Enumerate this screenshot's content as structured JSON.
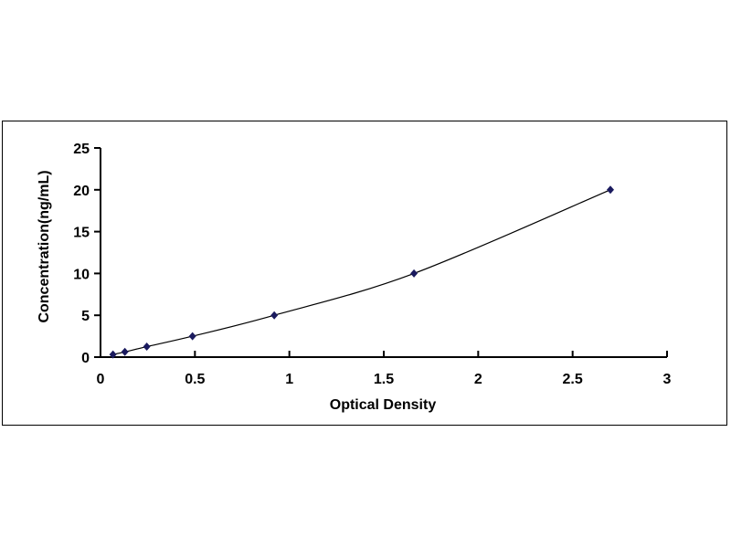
{
  "chart_data": {
    "type": "scatter",
    "title": "",
    "xlabel": "Optical Density",
    "ylabel": "Concentration(ng/mL)",
    "xlim": [
      0,
      3
    ],
    "ylim": [
      0,
      25
    ],
    "xticks": [
      "0",
      "0.5",
      "1",
      "1.5",
      "2",
      "2.5",
      "3"
    ],
    "yticks": [
      "0",
      "5",
      "10",
      "15",
      "20",
      "25"
    ],
    "grid": false,
    "legend": "none",
    "fit_line": true,
    "marker_color": "#1a1a5e",
    "line_color": "#000000",
    "series": [
      {
        "x": [
          0.066,
          0.129,
          0.245,
          0.487,
          0.92,
          1.66,
          2.7
        ],
        "y": [
          0.312,
          0.625,
          1.25,
          2.5,
          5,
          10,
          20
        ]
      }
    ]
  }
}
